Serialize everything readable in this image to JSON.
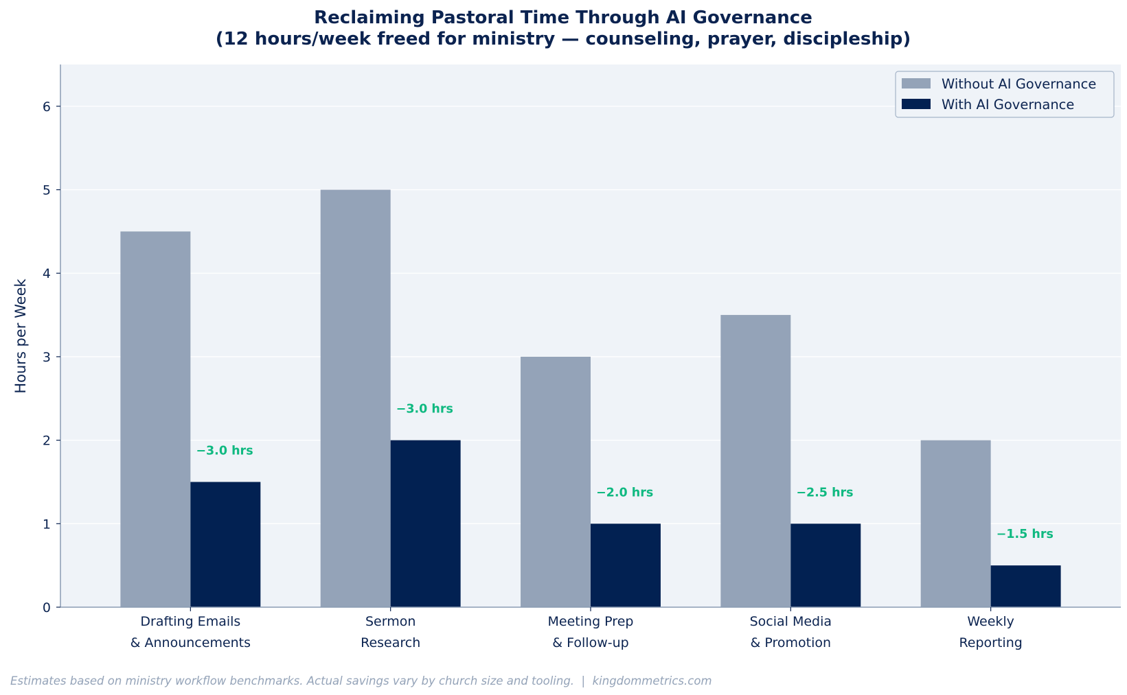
{
  "chart_data": {
    "type": "bar",
    "title_lines": [
      "Reclaiming Pastoral Time Through AI Governance",
      "(12 hours/week freed for ministry — counseling, prayer, discipleship)"
    ],
    "xlabel": "",
    "ylabel": "Hours per Week",
    "categories": [
      [
        "Drafting Emails",
        "& Announcements"
      ],
      [
        "Sermon",
        "Research"
      ],
      [
        "Meeting Prep",
        "& Follow-up"
      ],
      [
        "Social Media",
        "& Promotion"
      ],
      [
        "Weekly",
        "Reporting"
      ]
    ],
    "series": [
      {
        "name": "Without AI Governance",
        "values": [
          4.5,
          5.0,
          3.0,
          3.5,
          2.0
        ],
        "color": "#94a3b8"
      },
      {
        "name": "With AI Governance",
        "values": [
          1.5,
          2.0,
          1.0,
          1.0,
          0.5
        ],
        "color": "#022152"
      }
    ],
    "annotations": [
      "−3.0 hrs",
      "−3.0 hrs",
      "−2.0 hrs",
      "−2.5 hrs",
      "−1.5 hrs"
    ],
    "annotation_color": "#10b981",
    "ylim": [
      0,
      6.5
    ],
    "yticks": [
      0,
      1,
      2,
      3,
      4,
      5,
      6
    ],
    "grid": "horizontal",
    "legend_position": "top-right",
    "plot_background": "#eff3f8",
    "text_color": "#0b2350",
    "footnote": "Estimates based on ministry workflow benchmarks. Actual savings vary by church size and tooling.  |  kingdommetrics.com"
  }
}
